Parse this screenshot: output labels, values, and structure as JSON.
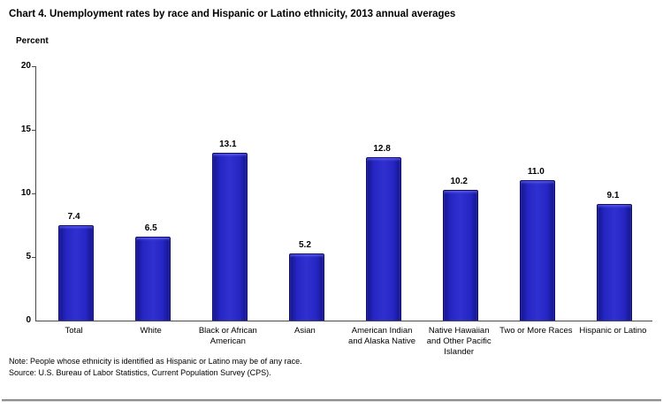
{
  "page": {
    "title": "Chart 4. Unemployment rates by race and Hispanic or Latino ethnicity, 2013 annual averages",
    "note": "Note: People whose ethnicity is identified as Hispanic or Latino may be of any race.",
    "source": "Source: U.S. Bureau of Labor Statistics, Current Population Survey (CPS)."
  },
  "chart_data": {
    "type": "bar",
    "title": "Chart 4. Unemployment rates by race and Hispanic or Latino ethnicity, 2013 annual averages",
    "xlabel": "",
    "ylabel": "Percent",
    "categories": [
      "Total",
      "White",
      "Black or African American",
      "Asian",
      "American Indian and Alaska Native",
      "Native Hawaiian and Other Pacific Islander",
      "Two or More Races",
      "Hispanic or Latino"
    ],
    "category_label_lines": [
      [
        "Total"
      ],
      [
        "White"
      ],
      [
        "Black or African",
        "American"
      ],
      [
        "Asian"
      ],
      [
        "American Indian",
        "and Alaska Native"
      ],
      [
        "Native Hawaiian",
        "and Other Pacific",
        "Islander"
      ],
      [
        "Two or More Races"
      ],
      [
        "Hispanic or Latino"
      ]
    ],
    "values": [
      7.4,
      6.5,
      13.1,
      5.2,
      12.8,
      10.2,
      11.0,
      9.1
    ],
    "value_labels": [
      "7.4",
      "6.5",
      "13.1",
      "5.2",
      "12.8",
      "10.2",
      "11.0",
      "9.1"
    ],
    "ylim": [
      0,
      20
    ],
    "yticks": [
      0,
      5,
      10,
      15,
      20
    ],
    "grid": false,
    "legend": "none",
    "bar_color": "#2525c2",
    "bar_edge_color": "#0e0e72",
    "axis_color": "#4a4a4a"
  }
}
